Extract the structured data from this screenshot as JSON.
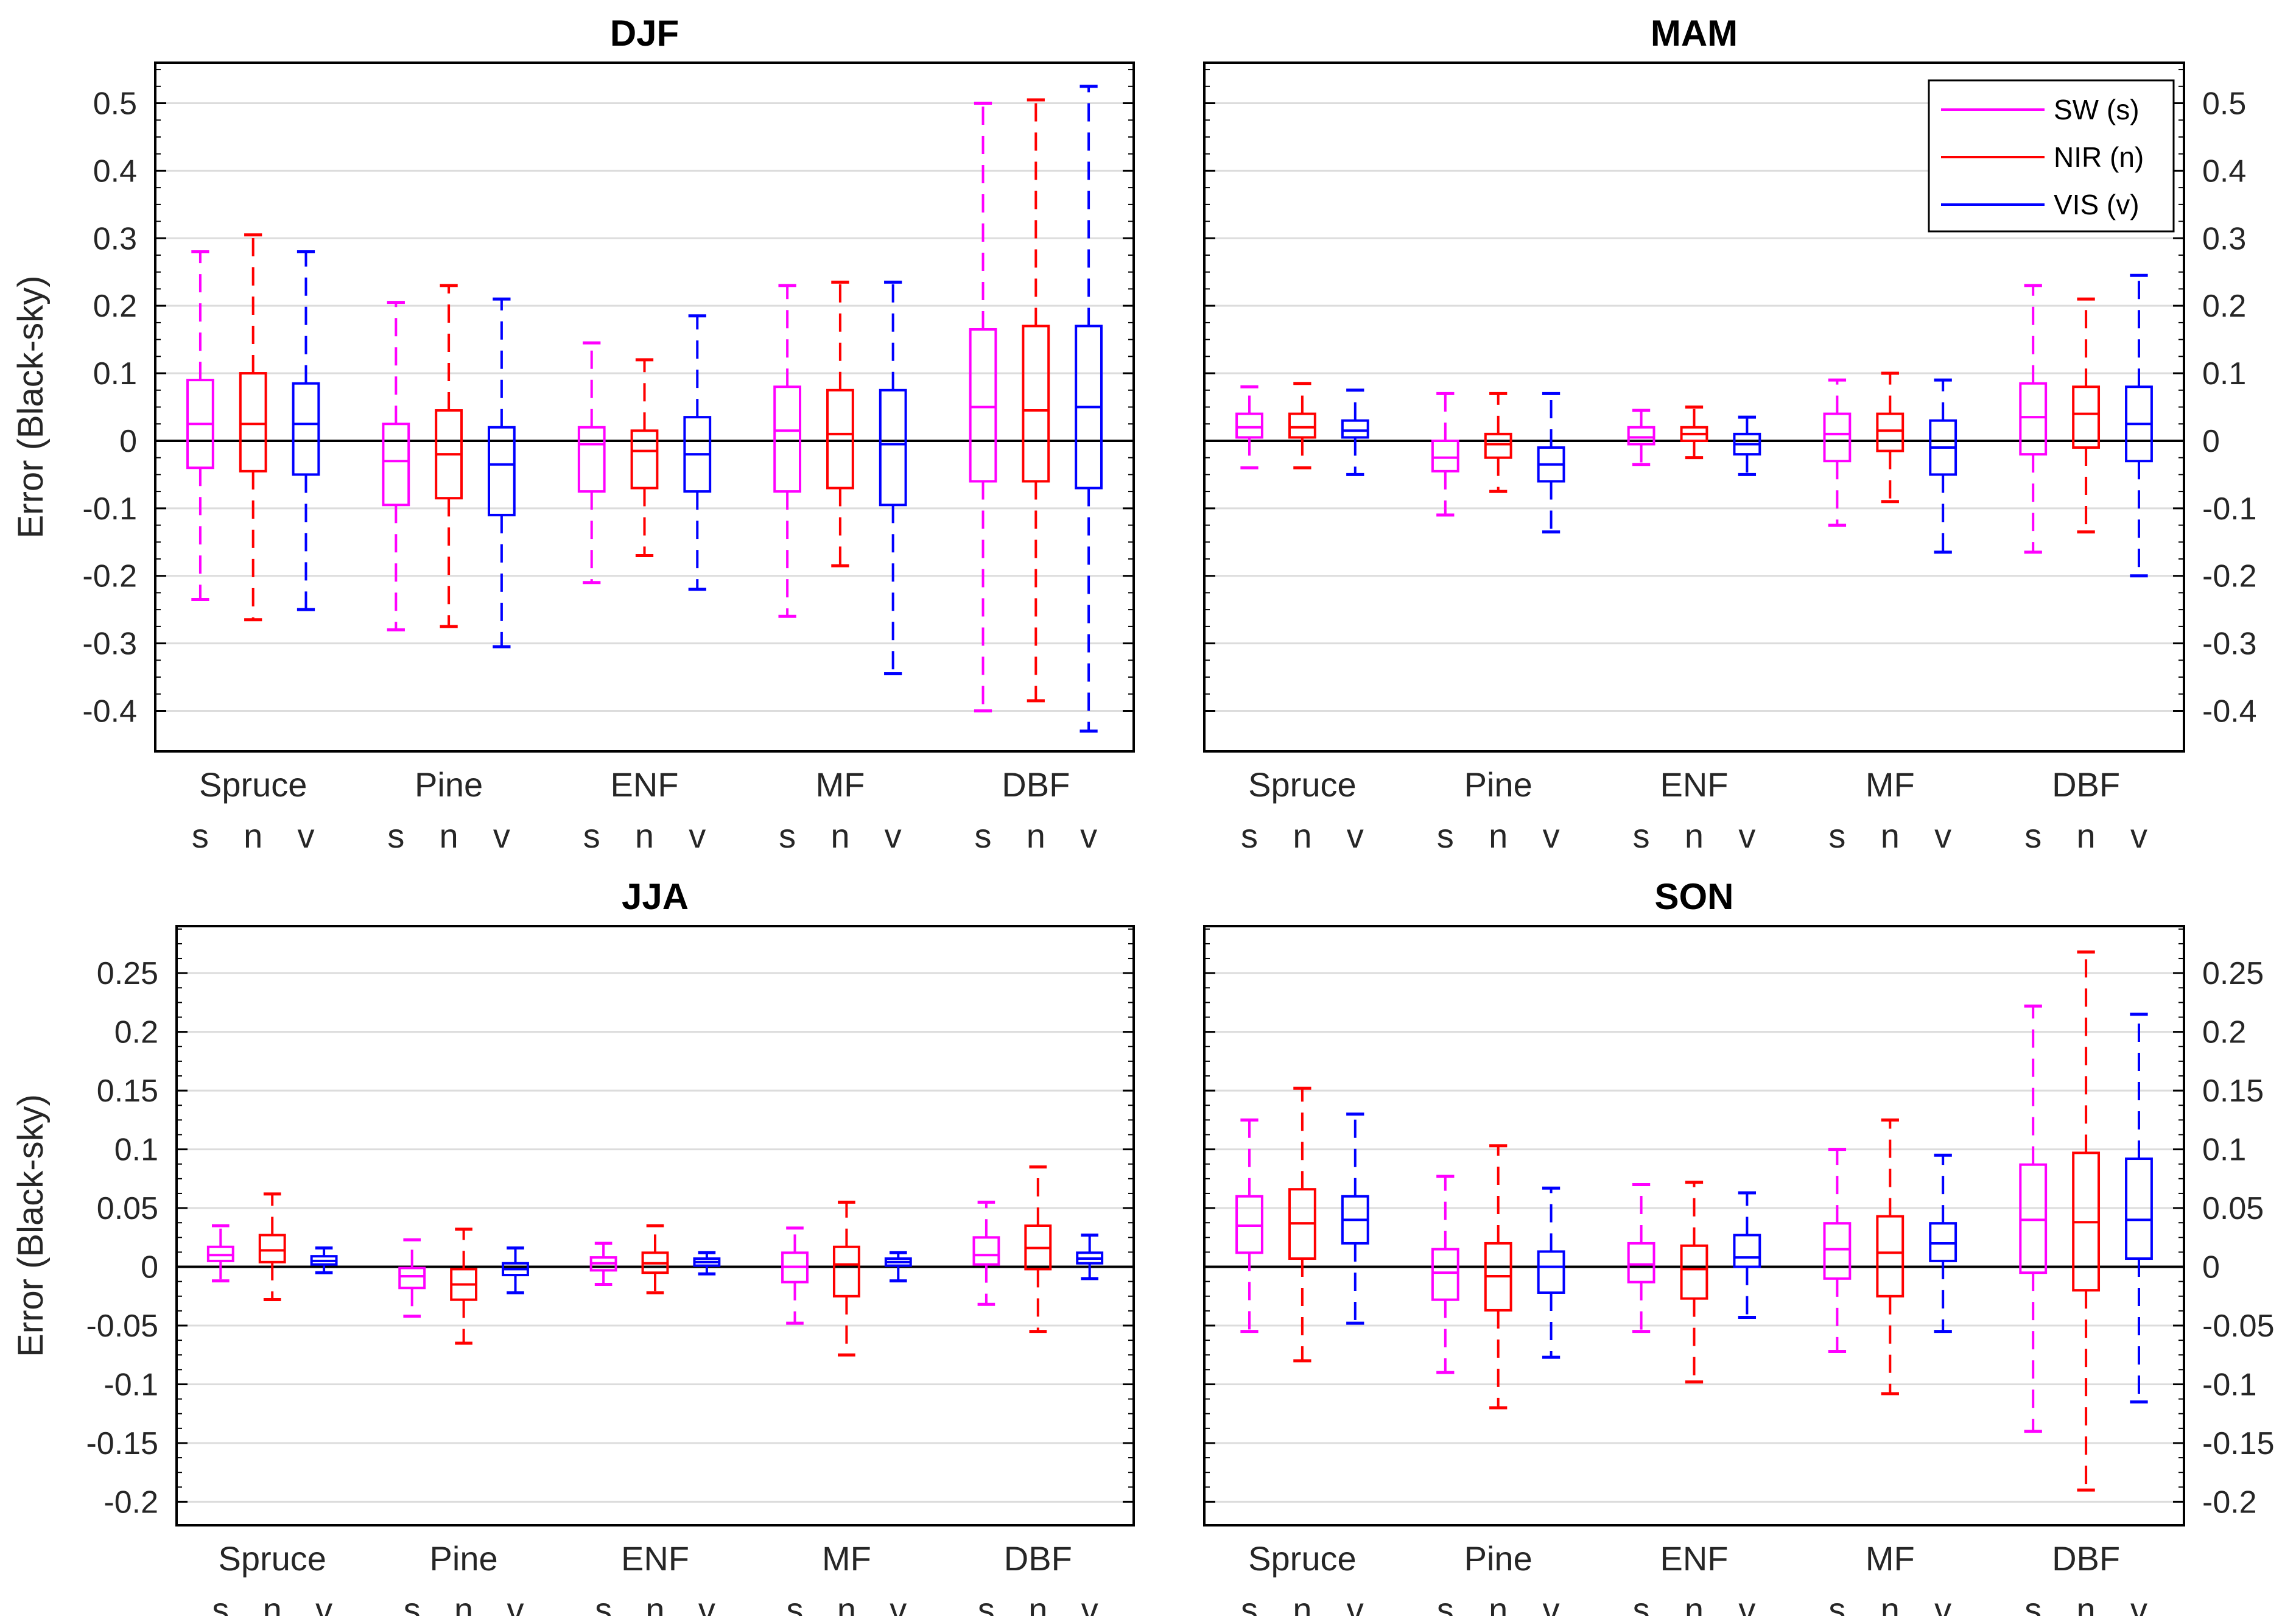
{
  "figure": {
    "ylabel": "Error (Black-sky)",
    "categories": [
      "Spruce",
      "Pine",
      "ENF",
      "MF",
      "DBF"
    ],
    "band_codes": [
      "s",
      "n",
      "v"
    ],
    "colors": {
      "SW": "#ff00ff",
      "NIR": "#ff0000",
      "VIS": "#0000ff"
    },
    "legend": [
      "SW (s)",
      "NIR (n)",
      "VIS (v)"
    ]
  },
  "chart_data": [
    {
      "type": "boxplot",
      "title": "DJF",
      "ylabel": "Error (Black-sky)",
      "ylim": [
        -0.46,
        0.56
      ],
      "yticks": [
        -0.4,
        -0.3,
        -0.2,
        -0.1,
        0,
        0.1,
        0.2,
        0.3,
        0.4,
        0.5
      ],
      "yticklabels": [
        "-0.4",
        "-0.3",
        "-0.2",
        "-0.1",
        "0",
        "0.1",
        "0.2",
        "0.3",
        "0.4",
        "0.5"
      ],
      "categories": [
        "Spruce",
        "Pine",
        "ENF",
        "MF",
        "DBF"
      ],
      "series": [
        {
          "name": "SW (s)",
          "code": "s",
          "boxes": [
            {
              "whislo": -0.235,
              "q1": -0.04,
              "med": 0.025,
              "q3": 0.09,
              "whishi": 0.28
            },
            {
              "whislo": -0.28,
              "q1": -0.095,
              "med": -0.03,
              "q3": 0.025,
              "whishi": 0.205
            },
            {
              "whislo": -0.21,
              "q1": -0.075,
              "med": -0.005,
              "q3": 0.02,
              "whishi": 0.145
            },
            {
              "whislo": -0.26,
              "q1": -0.075,
              "med": 0.015,
              "q3": 0.08,
              "whishi": 0.23
            },
            {
              "whislo": -0.4,
              "q1": -0.06,
              "med": 0.05,
              "q3": 0.165,
              "whishi": 0.5
            }
          ]
        },
        {
          "name": "NIR (n)",
          "code": "n",
          "boxes": [
            {
              "whislo": -0.265,
              "q1": -0.045,
              "med": 0.025,
              "q3": 0.1,
              "whishi": 0.305
            },
            {
              "whislo": -0.275,
              "q1": -0.085,
              "med": -0.02,
              "q3": 0.045,
              "whishi": 0.23
            },
            {
              "whislo": -0.17,
              "q1": -0.07,
              "med": -0.015,
              "q3": 0.015,
              "whishi": 0.12
            },
            {
              "whislo": -0.185,
              "q1": -0.07,
              "med": 0.01,
              "q3": 0.075,
              "whishi": 0.235
            },
            {
              "whislo": -0.385,
              "q1": -0.06,
              "med": 0.045,
              "q3": 0.17,
              "whishi": 0.505
            }
          ]
        },
        {
          "name": "VIS (v)",
          "code": "v",
          "boxes": [
            {
              "whislo": -0.25,
              "q1": -0.05,
              "med": 0.025,
              "q3": 0.085,
              "whishi": 0.28
            },
            {
              "whislo": -0.305,
              "q1": -0.11,
              "med": -0.035,
              "q3": 0.02,
              "whishi": 0.21
            },
            {
              "whislo": -0.22,
              "q1": -0.075,
              "med": -0.02,
              "q3": 0.035,
              "whishi": 0.185
            },
            {
              "whislo": -0.345,
              "q1": -0.095,
              "med": -0.005,
              "q3": 0.075,
              "whishi": 0.235
            },
            {
              "whislo": -0.43,
              "q1": -0.07,
              "med": 0.05,
              "q3": 0.17,
              "whishi": 0.525
            }
          ]
        }
      ]
    },
    {
      "type": "boxplot",
      "title": "MAM",
      "ylabel": "",
      "ylim": [
        -0.46,
        0.56
      ],
      "yticks": [
        -0.4,
        -0.3,
        -0.2,
        -0.1,
        0,
        0.1,
        0.2,
        0.3,
        0.4,
        0.5
      ],
      "yticklabels": [
        "-0.4",
        "-0.3",
        "-0.2",
        "-0.1",
        "0",
        "0.1",
        "0.2",
        "0.3",
        "0.4",
        "0.5"
      ],
      "categories": [
        "Spruce",
        "Pine",
        "ENF",
        "MF",
        "DBF"
      ],
      "series": [
        {
          "name": "SW (s)",
          "code": "s",
          "boxes": [
            {
              "whislo": -0.04,
              "q1": 0.005,
              "med": 0.02,
              "q3": 0.04,
              "whishi": 0.08
            },
            {
              "whislo": -0.11,
              "q1": -0.045,
              "med": -0.025,
              "q3": 0.0,
              "whishi": 0.07
            },
            {
              "whislo": -0.035,
              "q1": -0.005,
              "med": 0.005,
              "q3": 0.02,
              "whishi": 0.045
            },
            {
              "whislo": -0.125,
              "q1": -0.03,
              "med": 0.01,
              "q3": 0.04,
              "whishi": 0.09
            },
            {
              "whislo": -0.165,
              "q1": -0.02,
              "med": 0.035,
              "q3": 0.085,
              "whishi": 0.23
            }
          ]
        },
        {
          "name": "NIR (n)",
          "code": "n",
          "boxes": [
            {
              "whislo": -0.04,
              "q1": 0.005,
              "med": 0.02,
              "q3": 0.04,
              "whishi": 0.085
            },
            {
              "whislo": -0.075,
              "q1": -0.025,
              "med": -0.005,
              "q3": 0.01,
              "whishi": 0.07
            },
            {
              "whislo": -0.025,
              "q1": 0.0,
              "med": 0.01,
              "q3": 0.02,
              "whishi": 0.05
            },
            {
              "whislo": -0.09,
              "q1": -0.015,
              "med": 0.015,
              "q3": 0.04,
              "whishi": 0.1
            },
            {
              "whislo": -0.135,
              "q1": -0.01,
              "med": 0.04,
              "q3": 0.08,
              "whishi": 0.21
            }
          ]
        },
        {
          "name": "VIS (v)",
          "code": "v",
          "boxes": [
            {
              "whislo": -0.05,
              "q1": 0.005,
              "med": 0.015,
              "q3": 0.03,
              "whishi": 0.075
            },
            {
              "whislo": -0.135,
              "q1": -0.06,
              "med": -0.035,
              "q3": -0.01,
              "whishi": 0.07
            },
            {
              "whislo": -0.05,
              "q1": -0.02,
              "med": -0.005,
              "q3": 0.01,
              "whishi": 0.035
            },
            {
              "whislo": -0.165,
              "q1": -0.05,
              "med": -0.01,
              "q3": 0.03,
              "whishi": 0.09
            },
            {
              "whislo": -0.2,
              "q1": -0.03,
              "med": 0.025,
              "q3": 0.08,
              "whishi": 0.245
            }
          ]
        }
      ]
    },
    {
      "type": "boxplot",
      "title": "JJA",
      "ylabel": "Error (Black-sky)",
      "ylim": [
        -0.22,
        0.29
      ],
      "yticks": [
        -0.2,
        -0.15,
        -0.1,
        -0.05,
        0,
        0.05,
        0.1,
        0.15,
        0.2,
        0.25
      ],
      "yticklabels": [
        "-0.2",
        "-0.15",
        "-0.1",
        "-0.05",
        "0",
        "0.05",
        "0.1",
        "0.15",
        "0.2",
        "0.25"
      ],
      "categories": [
        "Spruce",
        "Pine",
        "ENF",
        "MF",
        "DBF"
      ],
      "series": [
        {
          "name": "SW (s)",
          "code": "s",
          "boxes": [
            {
              "whislo": -0.012,
              "q1": 0.005,
              "med": 0.01,
              "q3": 0.017,
              "whishi": 0.035
            },
            {
              "whislo": -0.042,
              "q1": -0.018,
              "med": -0.008,
              "q3": -0.001,
              "whishi": 0.023
            },
            {
              "whislo": -0.015,
              "q1": -0.003,
              "med": 0.003,
              "q3": 0.008,
              "whishi": 0.02
            },
            {
              "whislo": -0.048,
              "q1": -0.013,
              "med": 0.0,
              "q3": 0.012,
              "whishi": 0.033
            },
            {
              "whislo": -0.032,
              "q1": 0.002,
              "med": 0.01,
              "q3": 0.025,
              "whishi": 0.055
            }
          ]
        },
        {
          "name": "NIR (n)",
          "code": "n",
          "boxes": [
            {
              "whislo": -0.028,
              "q1": 0.004,
              "med": 0.014,
              "q3": 0.027,
              "whishi": 0.062
            },
            {
              "whislo": -0.065,
              "q1": -0.028,
              "med": -0.015,
              "q3": -0.002,
              "whishi": 0.032
            },
            {
              "whislo": -0.022,
              "q1": -0.005,
              "med": 0.003,
              "q3": 0.012,
              "whishi": 0.035
            },
            {
              "whislo": -0.075,
              "q1": -0.025,
              "med": 0.002,
              "q3": 0.017,
              "whishi": 0.055
            },
            {
              "whislo": -0.055,
              "q1": -0.002,
              "med": 0.016,
              "q3": 0.035,
              "whishi": 0.085
            }
          ]
        },
        {
          "name": "VIS (v)",
          "code": "v",
          "boxes": [
            {
              "whislo": -0.005,
              "q1": 0.002,
              "med": 0.005,
              "q3": 0.009,
              "whishi": 0.016
            },
            {
              "whislo": -0.022,
              "q1": -0.007,
              "med": -0.002,
              "q3": 0.003,
              "whishi": 0.016
            },
            {
              "whislo": -0.006,
              "q1": 0.001,
              "med": 0.004,
              "q3": 0.007,
              "whishi": 0.012
            },
            {
              "whislo": -0.012,
              "q1": 0.001,
              "med": 0.004,
              "q3": 0.007,
              "whishi": 0.012
            },
            {
              "whislo": -0.01,
              "q1": 0.003,
              "med": 0.007,
              "q3": 0.012,
              "whishi": 0.027
            }
          ]
        }
      ]
    },
    {
      "type": "boxplot",
      "title": "SON",
      "ylabel": "",
      "ylim": [
        -0.22,
        0.29
      ],
      "yticks": [
        -0.2,
        -0.15,
        -0.1,
        -0.05,
        0,
        0.05,
        0.1,
        0.15,
        0.2,
        0.25
      ],
      "yticklabels": [
        "-0.2",
        "-0.15",
        "-0.1",
        "-0.05",
        "0",
        "0.05",
        "0.1",
        "0.15",
        "0.2",
        "0.25"
      ],
      "categories": [
        "Spruce",
        "Pine",
        "ENF",
        "MF",
        "DBF"
      ],
      "series": [
        {
          "name": "SW (s)",
          "code": "s",
          "boxes": [
            {
              "whislo": -0.055,
              "q1": 0.012,
              "med": 0.035,
              "q3": 0.06,
              "whishi": 0.125
            },
            {
              "whislo": -0.09,
              "q1": -0.028,
              "med": -0.005,
              "q3": 0.015,
              "whishi": 0.077
            },
            {
              "whislo": -0.055,
              "q1": -0.013,
              "med": 0.002,
              "q3": 0.02,
              "whishi": 0.07
            },
            {
              "whislo": -0.072,
              "q1": -0.01,
              "med": 0.015,
              "q3": 0.037,
              "whishi": 0.1
            },
            {
              "whislo": -0.14,
              "q1": -0.005,
              "med": 0.04,
              "q3": 0.087,
              "whishi": 0.222
            }
          ]
        },
        {
          "name": "NIR (n)",
          "code": "n",
          "boxes": [
            {
              "whislo": -0.08,
              "q1": 0.007,
              "med": 0.037,
              "q3": 0.066,
              "whishi": 0.152
            },
            {
              "whislo": -0.12,
              "q1": -0.037,
              "med": -0.008,
              "q3": 0.02,
              "whishi": 0.103
            },
            {
              "whislo": -0.098,
              "q1": -0.027,
              "med": -0.002,
              "q3": 0.018,
              "whishi": 0.072
            },
            {
              "whislo": -0.108,
              "q1": -0.025,
              "med": 0.012,
              "q3": 0.043,
              "whishi": 0.125
            },
            {
              "whislo": -0.19,
              "q1": -0.02,
              "med": 0.038,
              "q3": 0.097,
              "whishi": 0.268
            }
          ]
        },
        {
          "name": "VIS (v)",
          "code": "v",
          "boxes": [
            {
              "whislo": -0.048,
              "q1": 0.02,
              "med": 0.04,
              "q3": 0.06,
              "whishi": 0.13
            },
            {
              "whislo": -0.077,
              "q1": -0.022,
              "med": 0.0,
              "q3": 0.013,
              "whishi": 0.067
            },
            {
              "whislo": -0.043,
              "q1": 0.0,
              "med": 0.008,
              "q3": 0.027,
              "whishi": 0.063
            },
            {
              "whislo": -0.055,
              "q1": 0.005,
              "med": 0.02,
              "q3": 0.037,
              "whishi": 0.095
            },
            {
              "whislo": -0.115,
              "q1": 0.007,
              "med": 0.04,
              "q3": 0.092,
              "whishi": 0.215
            }
          ]
        }
      ]
    }
  ]
}
